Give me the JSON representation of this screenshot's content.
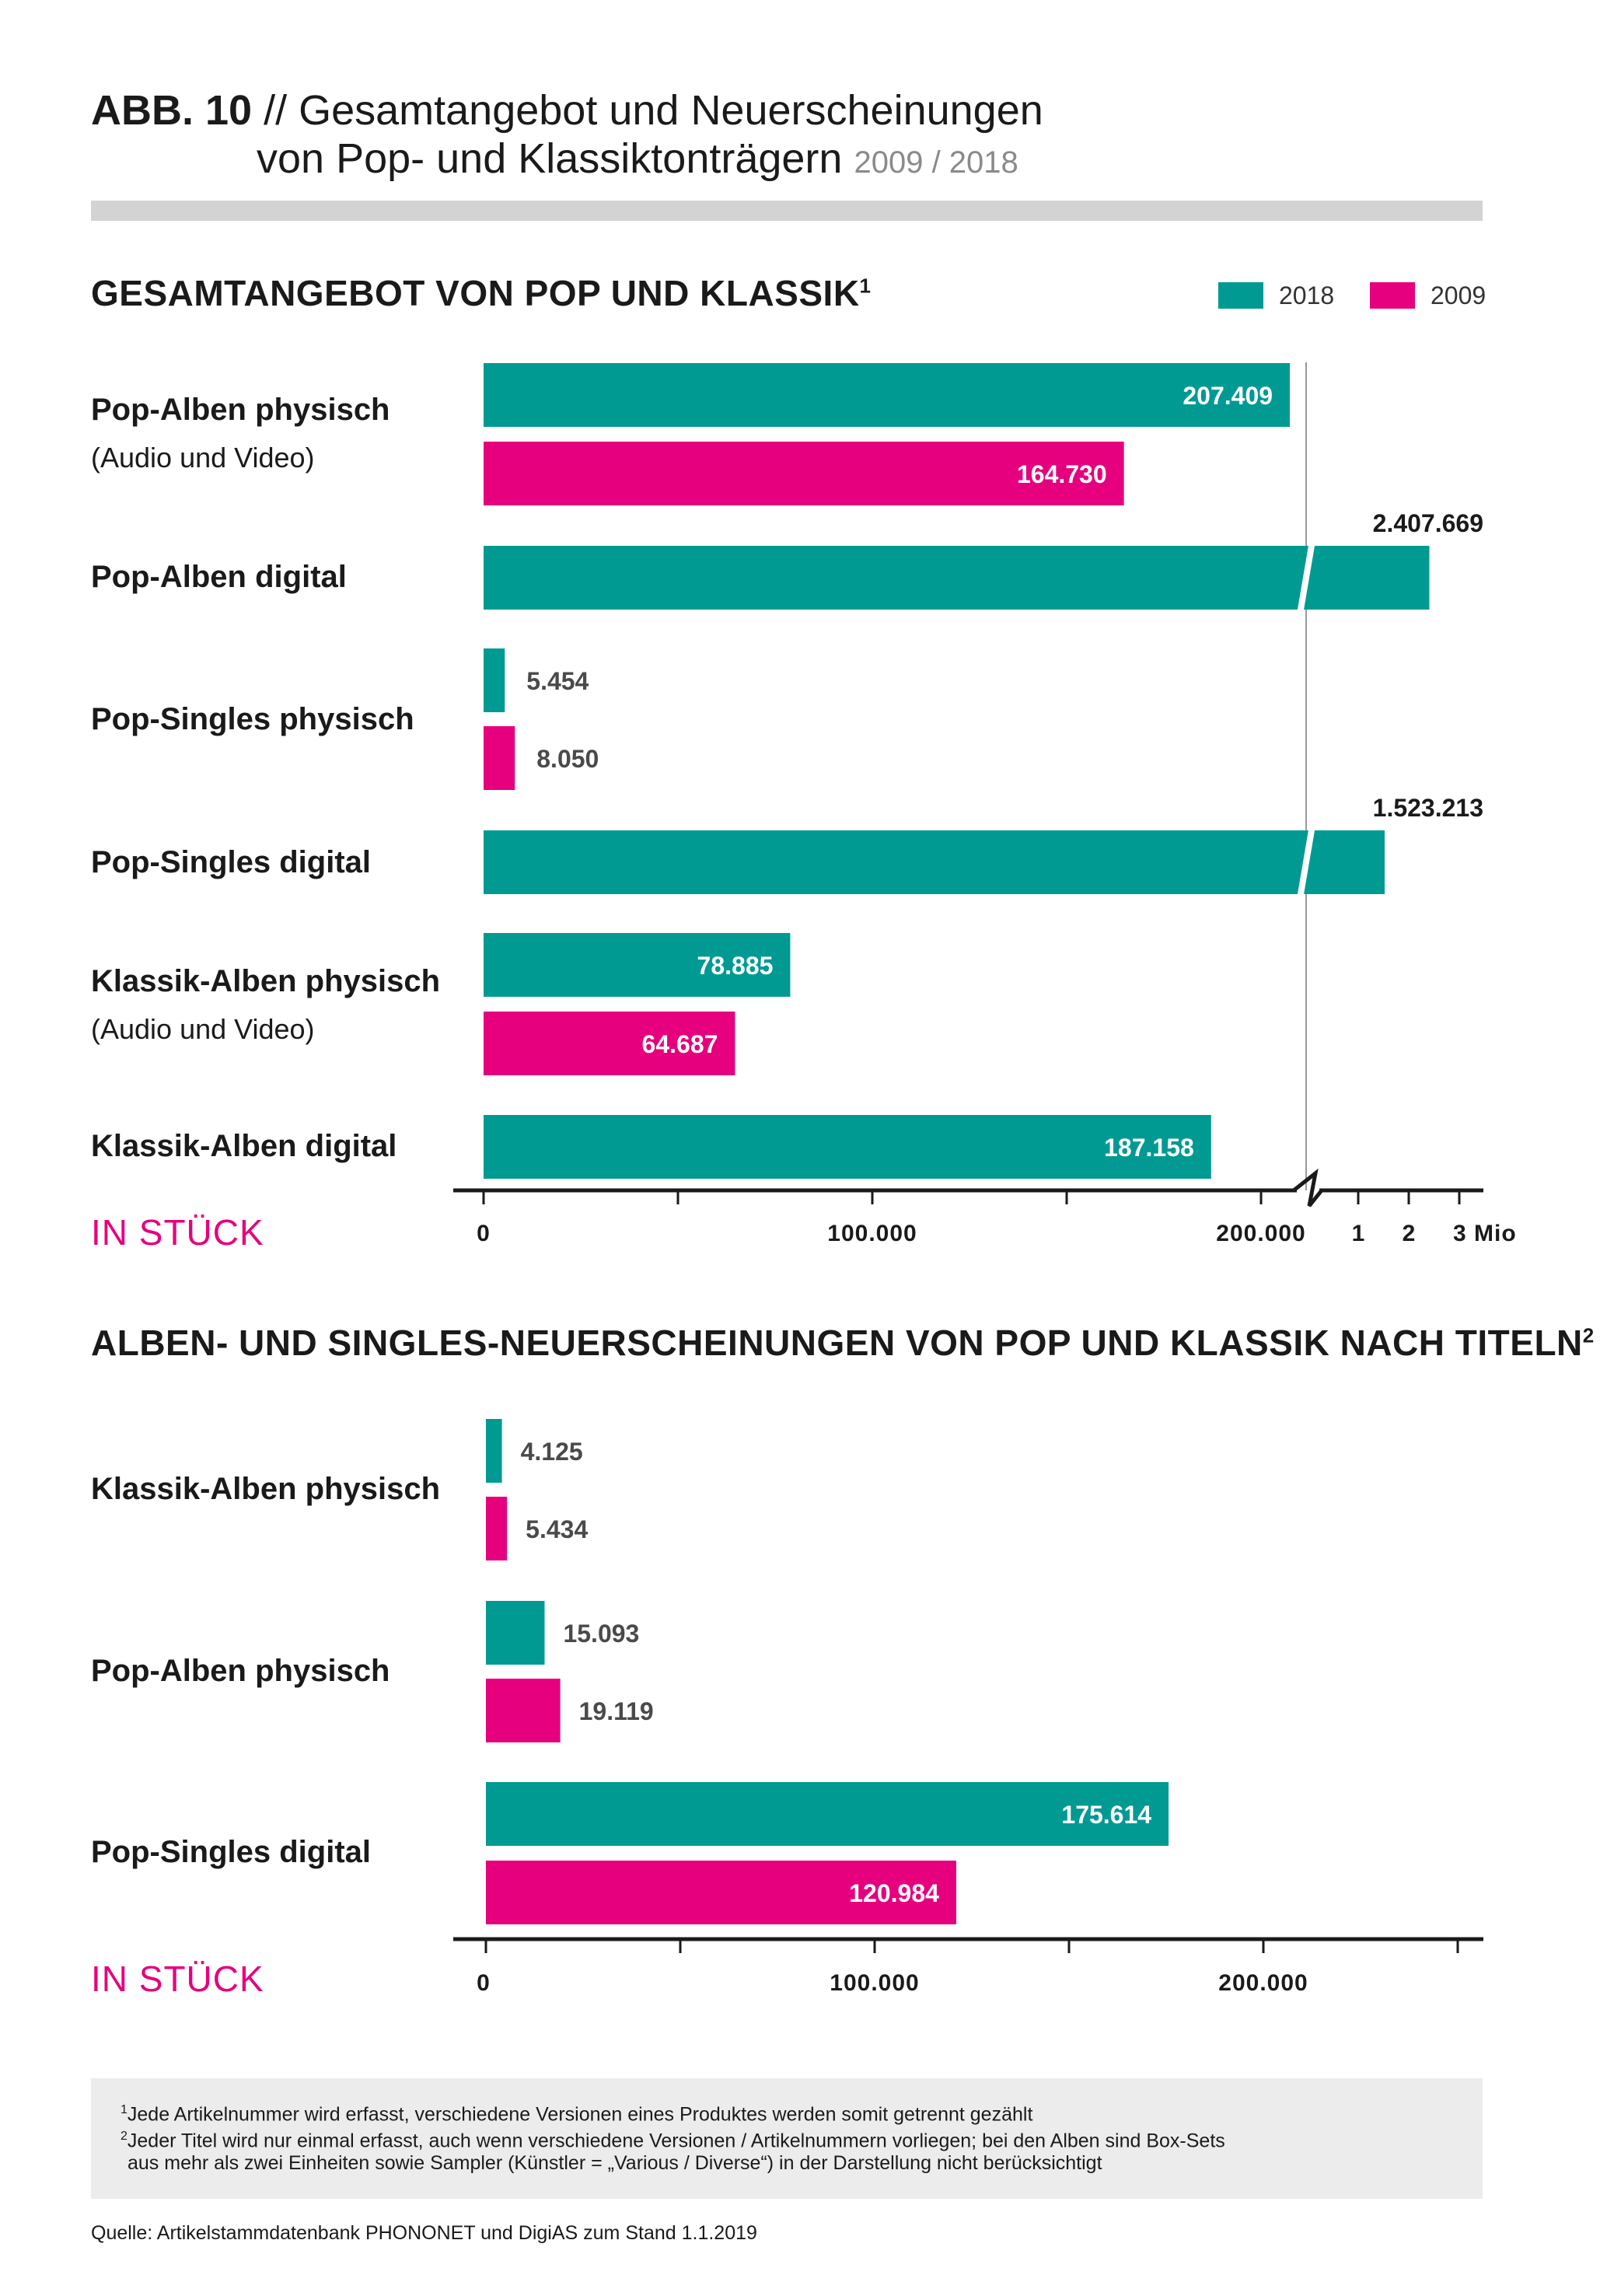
{
  "header": {
    "abb": "ABB. 10",
    "title_line1": "// Gesamtangebot und Neuerscheinungen",
    "title_line2": "von Pop- und Klassiktonträgern",
    "years": "2009 / 2018"
  },
  "legend": {
    "item_2018": "2018",
    "item_2009": "2009"
  },
  "colors": {
    "series_2018": "#009a93",
    "series_2009": "#e6007e",
    "axis": "#1a1a1a",
    "unit_label": "#e6007e"
  },
  "chart_data": [
    {
      "type": "bar",
      "orientation": "horizontal",
      "title": "GESAMTANGEBOT VON POP UND KLASSIK",
      "title_sup": "1",
      "unit_label": "IN STÜCK",
      "axis": "broken",
      "xlim_linear": [
        0,
        225000
      ],
      "xlim_broken": [
        1000000,
        3000000
      ],
      "ticks_linear": [
        "0",
        "100.000",
        "200.000"
      ],
      "ticks_broken": [
        "1",
        "2",
        "3 Mio"
      ],
      "rows": [
        {
          "category": "Pop-Alben physisch",
          "sub": "(Audio und Video)",
          "bars": [
            {
              "series": "2018",
              "value": 207409,
              "label": "207.409"
            },
            {
              "series": "2009",
              "value": 164730,
              "label": "164.730"
            }
          ]
        },
        {
          "category": "Pop-Alben digital",
          "sub": "",
          "bars": [
            {
              "series": "2018",
              "value": 2407669,
              "label": "2.407.669"
            }
          ]
        },
        {
          "category": "Pop-Singles physisch",
          "sub": "",
          "bars": [
            {
              "series": "2018",
              "value": 5454,
              "label": "5.454"
            },
            {
              "series": "2009",
              "value": 8050,
              "label": "8.050"
            }
          ]
        },
        {
          "category": "Pop-Singles digital",
          "sub": "",
          "bars": [
            {
              "series": "2018",
              "value": 1523213,
              "label": "1.523.213"
            }
          ]
        },
        {
          "category": "Klassik-Alben physisch",
          "sub": "(Audio und Video)",
          "bars": [
            {
              "series": "2018",
              "value": 78885,
              "label": "78.885"
            },
            {
              "series": "2009",
              "value": 64687,
              "label": "64.687"
            }
          ]
        },
        {
          "category": "Klassik-Alben digital",
          "sub": "",
          "bars": [
            {
              "series": "2018",
              "value": 187158,
              "label": "187.158"
            }
          ]
        }
      ]
    },
    {
      "type": "bar",
      "orientation": "horizontal",
      "title": "ALBEN- UND SINGLES-NEUERSCHEINUNGEN VON POP UND KLASSIK NACH TITELN",
      "title_sup": "2",
      "unit_label": "IN STÜCK",
      "axis": "linear",
      "xlim_linear": [
        0,
        250000
      ],
      "ticks_linear": [
        "0",
        "100.000",
        "200.000"
      ],
      "rows": [
        {
          "category": "Klassik-Alben physisch",
          "sub": "",
          "bars": [
            {
              "series": "2018",
              "value": 4125,
              "label": "4.125"
            },
            {
              "series": "2009",
              "value": 5434,
              "label": "5.434"
            }
          ]
        },
        {
          "category": "Pop-Alben physisch",
          "sub": "",
          "bars": [
            {
              "series": "2018",
              "value": 15093,
              "label": "15.093"
            },
            {
              "series": "2009",
              "value": 19119,
              "label": "19.119"
            }
          ]
        },
        {
          "category": "Pop-Singles digital",
          "sub": "",
          "bars": [
            {
              "series": "2018",
              "value": 175614,
              "label": "175.614"
            },
            {
              "series": "2009",
              "value": 120984,
              "label": "120.984"
            }
          ]
        }
      ]
    }
  ],
  "footnotes": {
    "fn1_mark": "1",
    "fn1": "Jede Artikelnummer wird erfasst, verschiedene Versionen eines Produktes werden somit getrennt gezählt",
    "fn2_mark": "2",
    "fn2_line1": "Jeder Titel wird nur einmal erfasst, auch wenn verschiedene Versionen / Artikelnummern vorliegen; bei den Alben sind Box-Sets",
    "fn2_line2": "aus mehr als zwei Einheiten sowie Sampler (Künstler = „Various / Diverse“) in der Darstellung nicht berücksichtigt"
  },
  "source": "Quelle: Artikelstammdatenbank PHONONET und DigiAS zum Stand 1.1.2019"
}
